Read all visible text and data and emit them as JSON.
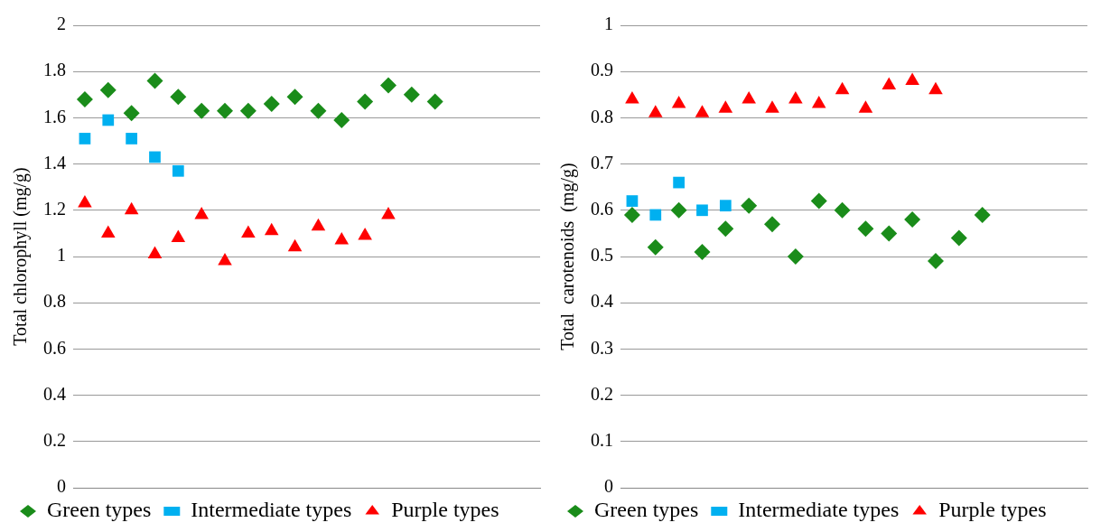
{
  "chart_data": [
    {
      "type": "scatter",
      "ylabel": "Total chlorophyll (mg/g)",
      "categories": [
        null,
        null,
        null,
        null,
        null,
        null,
        null,
        null,
        null,
        null,
        null,
        null,
        null,
        null,
        null,
        null,
        null,
        null,
        null,
        null
      ],
      "ylim": [
        0,
        2
      ],
      "yticks": [
        0,
        0.2,
        0.4,
        0.6,
        0.8,
        1,
        1.2,
        1.4,
        1.6,
        1.8,
        2
      ],
      "grid": "y",
      "legend": "bottom",
      "tick_labels": "y",
      "series": [
        {
          "name": "Green types",
          "color": "#1a8c1a",
          "marker": "diamond",
          "values": [
            1.68,
            1.72,
            1.62,
            1.76,
            1.69,
            1.63,
            1.63,
            1.63,
            1.66,
            1.69,
            1.63,
            1.59,
            1.67,
            1.74,
            1.7,
            1.67,
            null,
            null,
            null,
            null
          ]
        },
        {
          "name": "Intermediate types",
          "color": "#00b0f0",
          "marker": "square",
          "values": [
            1.51,
            1.59,
            1.51,
            1.43,
            1.37,
            null,
            null,
            null,
            null,
            null,
            null,
            null,
            null,
            null,
            null,
            null,
            null,
            null,
            null,
            null
          ]
        },
        {
          "name": "Purple types",
          "color": "#ff0000",
          "marker": "triangle",
          "values": [
            1.23,
            1.1,
            1.2,
            1.01,
            1.08,
            1.18,
            0.98,
            1.1,
            1.11,
            1.04,
            1.13,
            1.07,
            1.09,
            1.18,
            null,
            null,
            null,
            null,
            null,
            null
          ]
        }
      ]
    },
    {
      "type": "scatter",
      "ylabel": "Total  carotenoids  (mg/g)",
      "categories": [
        null,
        null,
        null,
        null,
        null,
        null,
        null,
        null,
        null,
        null,
        null,
        null,
        null,
        null,
        null,
        null,
        null,
        null,
        null,
        null
      ],
      "ylim": [
        0,
        1
      ],
      "yticks": [
        0,
        0.1,
        0.2,
        0.3,
        0.4,
        0.5,
        0.6,
        0.7,
        0.8,
        0.9,
        1
      ],
      "grid": "y",
      "legend": "bottom",
      "tick_labels": "y",
      "series": [
        {
          "name": "Green types",
          "color": "#1a8c1a",
          "marker": "diamond",
          "values": [
            0.59,
            0.52,
            0.6,
            0.51,
            0.56,
            0.61,
            0.57,
            0.5,
            0.62,
            0.6,
            0.56,
            0.55,
            0.58,
            0.49,
            0.54,
            0.59,
            null,
            null,
            null,
            null
          ]
        },
        {
          "name": "Intermediate types",
          "color": "#00b0f0",
          "marker": "square",
          "values": [
            0.62,
            0.59,
            0.66,
            0.6,
            0.61,
            null,
            null,
            null,
            null,
            null,
            null,
            null,
            null,
            null,
            null,
            null,
            null,
            null,
            null,
            null
          ]
        },
        {
          "name": "Purple types",
          "color": "#ff0000",
          "marker": "triangle",
          "values": [
            0.84,
            0.81,
            0.83,
            0.81,
            0.82,
            0.84,
            0.82,
            0.84,
            0.83,
            0.86,
            0.82,
            0.87,
            0.88,
            0.86,
            null,
            null,
            null,
            null,
            null,
            null
          ]
        }
      ]
    }
  ]
}
